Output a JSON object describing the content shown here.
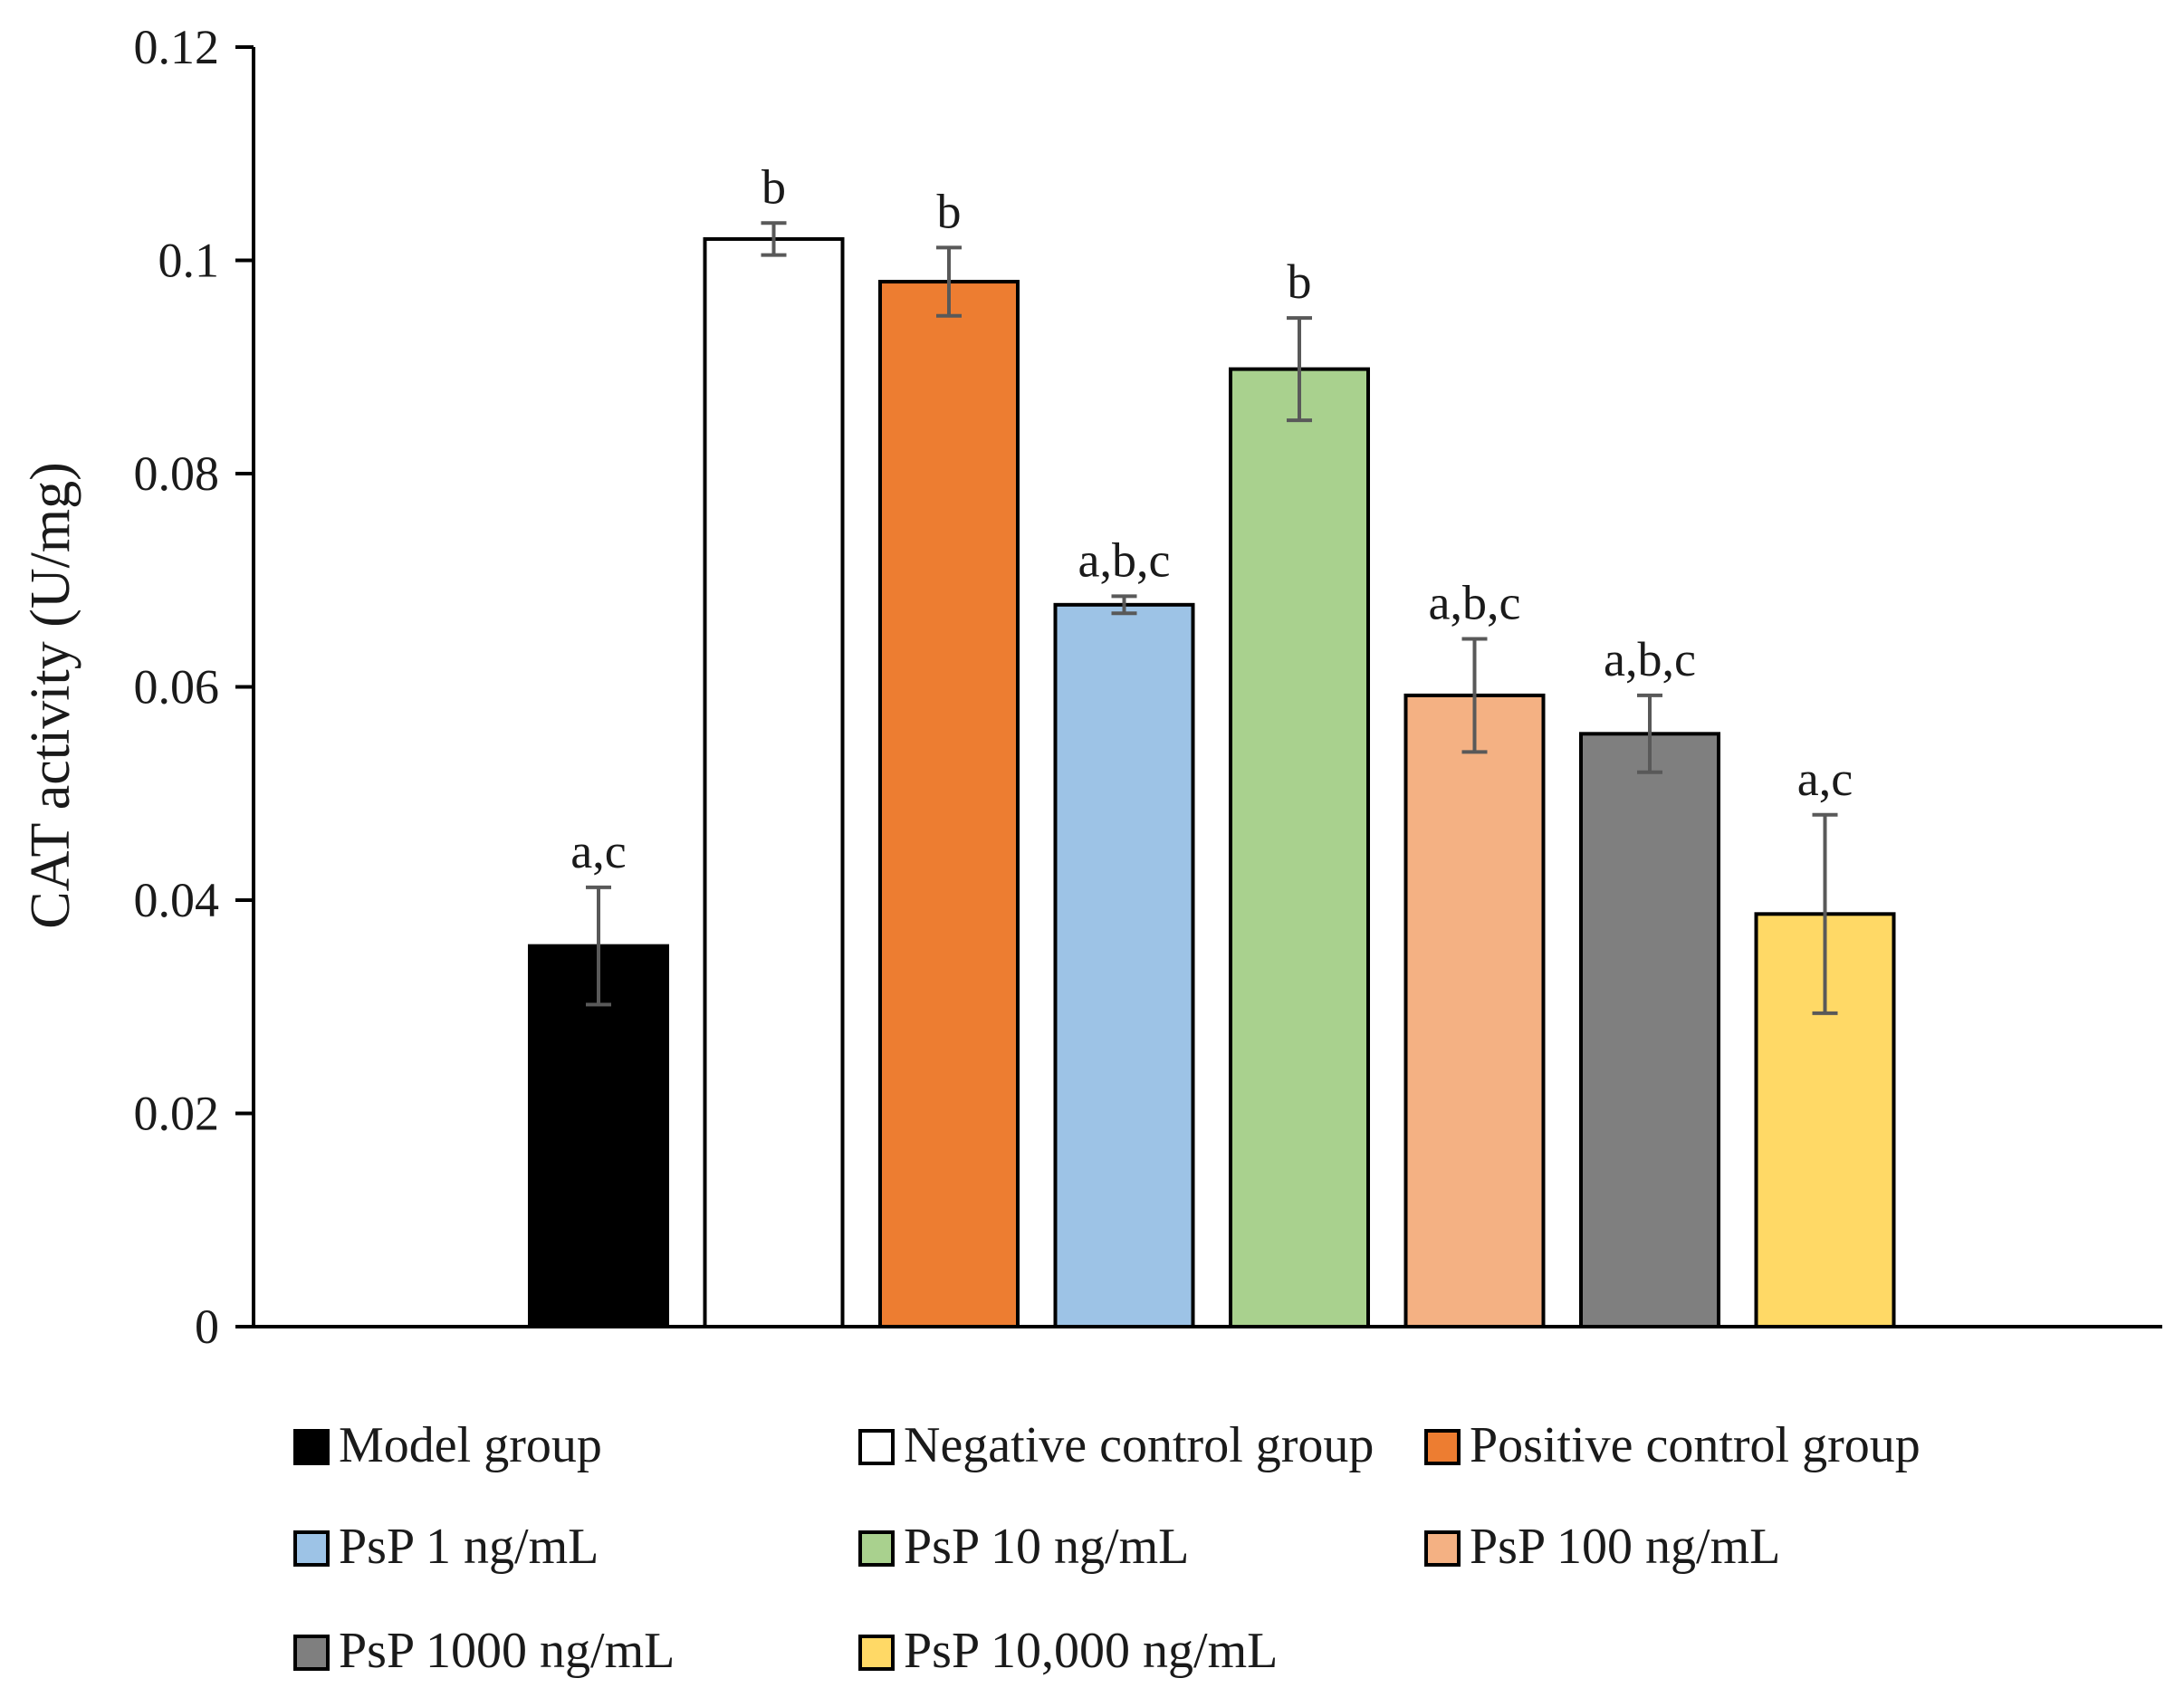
{
  "chart_data": {
    "type": "bar",
    "title": "",
    "xlabel": "",
    "ylabel": "CAT activity (U/mg)",
    "ylim": [
      0,
      0.12
    ],
    "yticks": [
      0,
      0.02,
      0.04,
      0.06,
      0.08,
      0.1,
      0.12
    ],
    "ytick_labels": [
      "0",
      "0.02",
      "0.04",
      "0.06",
      "0.08",
      "0.1",
      "0.12"
    ],
    "grid": false,
    "legend_position": "bottom",
    "series": [
      {
        "name": "Model group",
        "value": 0.0357,
        "error": 0.0055,
        "label": "a,c",
        "color": "#000000"
      },
      {
        "name": "Negative control group",
        "value": 0.102,
        "error": 0.0015,
        "label": "b",
        "color": "#ffffff"
      },
      {
        "name": "Positive control group",
        "value": 0.098,
        "error": 0.0032,
        "label": "b",
        "color": "#ed7d31"
      },
      {
        "name": "PsP 1 ng/mL",
        "value": 0.0677,
        "error": 0.0008,
        "label": "a,b,c",
        "color": "#9dc3e6"
      },
      {
        "name": "PsP 10 ng/mL",
        "value": 0.0898,
        "error": 0.0048,
        "label": "b",
        "color": "#a9d18e"
      },
      {
        "name": "PsP 100 ng/mL",
        "value": 0.0592,
        "error": 0.0053,
        "label": "a,b,c",
        "color": "#f4b183"
      },
      {
        "name": "PsP 1000 ng/mL",
        "value": 0.0556,
        "error": 0.0036,
        "label": "a,b,c",
        "color": "#7f7f7f"
      },
      {
        "name": "PsP 10,000 ng/mL",
        "value": 0.0387,
        "error": 0.0093,
        "label": "a,c",
        "color": "#ffd966"
      }
    ]
  }
}
